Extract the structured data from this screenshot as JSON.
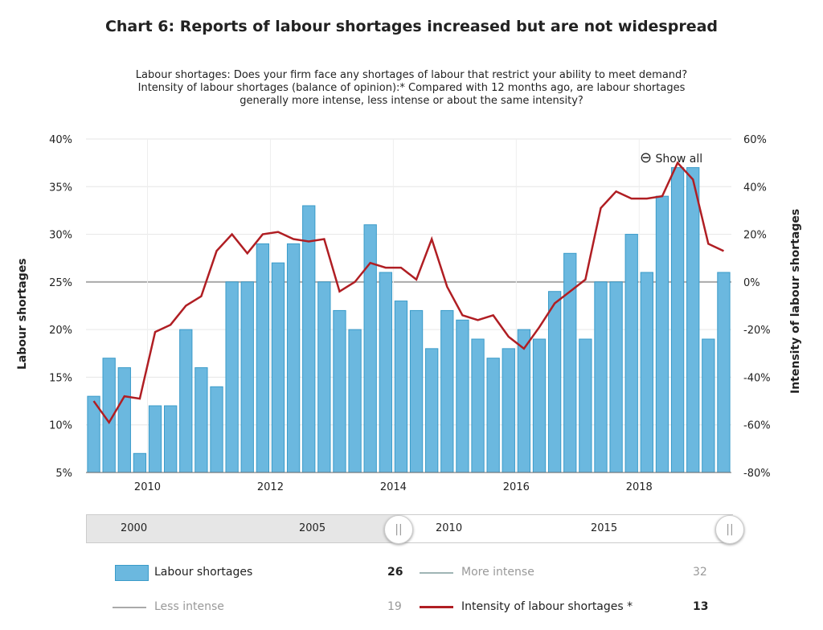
{
  "chart_data": {
    "type": "bar+line",
    "title": "Chart 6: Reports of labour shortages increased but are not widespread",
    "subtitle": "Labour shortages: Does your firm face any shortages of labour that restrict your ability to meet demand? Intensity of labour shortages (balance of opinion):* Compared with 12 months ago, are labour shortages generally more intense, less intense or about the same intensity?",
    "ylabel": "Labour shortages",
    "y2label": "Intensity of labour shortages",
    "ylim": [
      5,
      40
    ],
    "y2lim": [
      -80,
      60
    ],
    "yticks": [
      "5%",
      "10%",
      "15%",
      "20%",
      "25%",
      "30%",
      "35%",
      "40%"
    ],
    "y2ticks": [
      "-80%",
      "-60%",
      "-40%",
      "-20%",
      "0%",
      "20%",
      "40%",
      "60%"
    ],
    "xticks": [
      "2010",
      "2012",
      "2014",
      "2016",
      "2018"
    ],
    "x_start": "2009Q1",
    "series": [
      {
        "name": "Labour shortages",
        "type": "bar",
        "color": "#6bb8df",
        "values": [
          13,
          17,
          16,
          7,
          12,
          12,
          20,
          16,
          14,
          25,
          25,
          29,
          27,
          29,
          33,
          25,
          22,
          20,
          31,
          26,
          23,
          22,
          18,
          22,
          21,
          19,
          17,
          18,
          20,
          19,
          24,
          28,
          19,
          25,
          25,
          30,
          26,
          34,
          37,
          37,
          19,
          26
        ]
      },
      {
        "name": "Intensity of labour shortages *",
        "type": "line",
        "color": "#b01e23",
        "values": [
          -50,
          -59,
          -48,
          -49,
          -21,
          -18,
          -10,
          -6,
          13,
          20,
          12,
          20,
          21,
          18,
          17,
          18,
          -4,
          0,
          8,
          6,
          6,
          1,
          18,
          -2,
          -14,
          -16,
          -14,
          -23,
          -28,
          -19,
          -9,
          -4,
          1,
          31,
          38,
          35,
          35,
          36,
          50,
          43,
          16,
          13
        ]
      }
    ],
    "grid": true
  },
  "show_all": "Show all",
  "navigator": {
    "labels": [
      "2000",
      "2005",
      "2010",
      "2015"
    ]
  },
  "legend": [
    {
      "label": "Labour shortages",
      "value": "26",
      "color": "#6bb8df"
    },
    {
      "label": "More intense",
      "value": "32",
      "color": "#9fb5b5"
    },
    {
      "label": "Less intense",
      "value": "19",
      "color": "#aaaaaa"
    },
    {
      "label": "Intensity of labour shortages *",
      "value": "13",
      "color": "#b01e23"
    }
  ]
}
